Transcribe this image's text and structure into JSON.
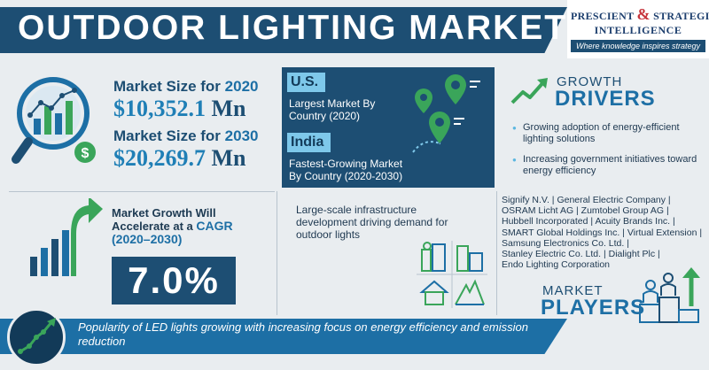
{
  "header": {
    "title": "OUTDOOR LIGHTING MARKET",
    "logo_line1_a": "PRESCIENT",
    "logo_amp": "&",
    "logo_line1_b": "STRATEGIC",
    "logo_line2": "INTELLIGENCE",
    "logo_tagline": "Where knowledge inspires strategy"
  },
  "market_size": {
    "label_prefix": "Market Size for",
    "year_2020": "2020",
    "value_2020": "$10,352.1",
    "unit_2020": "Mn",
    "year_2030": "2030",
    "value_2030": "$20,269.7",
    "unit_2030": "Mn"
  },
  "country": {
    "largest_tag": "U.S.",
    "largest_desc": "Largest Market By Country (2020)",
    "fastest_tag": "India",
    "fastest_desc_line1": "Fastest-Growing Market",
    "fastest_desc_line2": "By Country (2020-2030)"
  },
  "drivers": {
    "heading_small": "GROWTH",
    "heading_big": "DRIVERS",
    "items": [
      "Growing adoption of energy-efficient lighting solutions",
      "Increasing government initiatives toward energy efficiency"
    ]
  },
  "cagr": {
    "line1": "Market Growth Will",
    "line2_prefix": "Accelerate at a",
    "line2_highlight": "CAGR",
    "line3": "(2020–2030)",
    "value": "7.0%"
  },
  "infrastructure": {
    "text": "Large-scale infrastructure development driving demand for outdoor lights"
  },
  "players": {
    "lines": [
      "Signify N.V. | General Electric Company |",
      "OSRAM Licht AG | Zumtobel Group AG |",
      "Hubbell Incorporated | Acuity Brands Inc. |",
      "SMART Global Holdings Inc. | Virtual Extension |",
      "Samsung Electronics Co. Ltd. |",
      "Stanley Electric Co. Ltd. | Dialight Plc |",
      "Endo Lighting Corporation"
    ],
    "heading_small": "MARKET",
    "heading_big": "PLAYERS"
  },
  "bottom": {
    "text": "Popularity of LED lights growing with increasing focus on energy efficiency and emission reduction"
  },
  "colors": {
    "navy": "#1d4e73",
    "blue": "#1d6fa5",
    "light_blue": "#7ec8ea",
    "green": "#3aa55a",
    "red": "#c7343b",
    "background": "#e9edf0"
  }
}
